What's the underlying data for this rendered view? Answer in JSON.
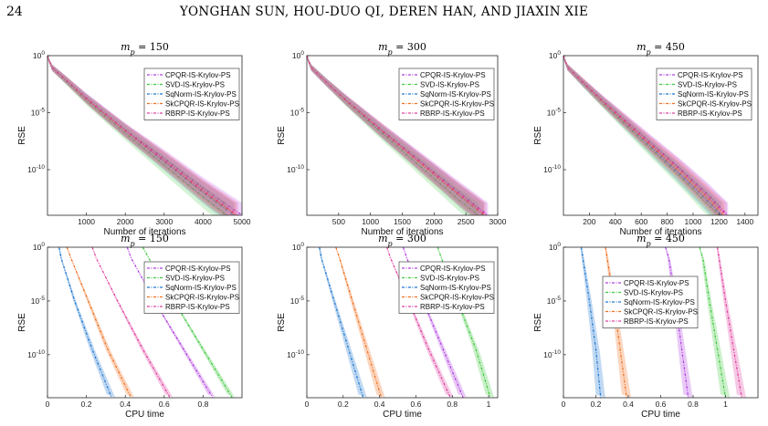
{
  "header": {
    "page_number": "24",
    "running_title": "YONGHAN SUN, HOU-DUO QI, DEREN HAN, AND JIAXIN XIE"
  },
  "chart_data": [
    {
      "type": "line",
      "title": "m_p = 150",
      "xlabel": "Number of iterations",
      "ylabel": "RSE",
      "yscale": "log",
      "xlim": [
        0,
        5000
      ],
      "ylim": [
        1e-14,
        1
      ],
      "xticks": [
        "1000",
        "2000",
        "3000",
        "4000",
        "5000"
      ],
      "yticks": [
        "10^0",
        "10^-5",
        "10^-10"
      ],
      "legend": "top-right",
      "series": [
        {
          "name": "CPQR-IS-Krylov-PS",
          "color": "#b040e0",
          "x": [
            0,
            100,
            500,
            1000,
            2000,
            3000,
            4000,
            5000
          ],
          "y_exp": [
            0,
            -1.0,
            -2.2,
            -3.7,
            -6.5,
            -9.0,
            -11.6,
            -14.0
          ]
        },
        {
          "name": "SVD-IS-Krylov-PS",
          "color": "#40c840",
          "x": [
            0,
            100,
            500,
            1000,
            2000,
            3000,
            4000,
            4600
          ],
          "y_exp": [
            0,
            -1.0,
            -2.3,
            -3.9,
            -6.8,
            -9.6,
            -12.4,
            -14.0
          ]
        },
        {
          "name": "SqNorm-IS-Krylov-PS",
          "color": "#1f78d0",
          "x": [
            0,
            100,
            500,
            1000,
            2000,
            3000,
            4000,
            4800
          ],
          "y_exp": [
            0,
            -1.0,
            -2.2,
            -3.8,
            -6.6,
            -9.3,
            -12.0,
            -14.0
          ]
        },
        {
          "name": "SkCPQR-IS-Krylov-PS",
          "color": "#f07020",
          "x": [
            0,
            100,
            500,
            1000,
            2000,
            3000,
            4000,
            4850
          ],
          "y_exp": [
            0,
            -1.0,
            -2.2,
            -3.8,
            -6.6,
            -9.2,
            -11.9,
            -14.0
          ]
        },
        {
          "name": "RBRP-IS-Krylov-PS",
          "color": "#e040a0",
          "x": [
            0,
            100,
            500,
            1000,
            2000,
            3000,
            4000,
            4900
          ],
          "y_exp": [
            0,
            -1.0,
            -2.2,
            -3.75,
            -6.55,
            -9.15,
            -11.8,
            -14.0
          ]
        }
      ]
    },
    {
      "type": "line",
      "title": "m_p = 300",
      "xlabel": "Number of iterations",
      "ylabel": "RSE",
      "yscale": "log",
      "xlim": [
        0,
        3000
      ],
      "ylim": [
        1e-14,
        1
      ],
      "xticks": [
        "500",
        "1000",
        "1500",
        "2000",
        "2500",
        "3000"
      ],
      "yticks": [
        "10^0",
        "10^-5",
        "10^-10"
      ],
      "legend": "top-right",
      "series": [
        {
          "name": "CPQR-IS-Krylov-PS",
          "color": "#b040e0",
          "x": [
            0,
            60,
            300,
            600,
            1200,
            1800,
            2400,
            2850
          ],
          "y_exp": [
            0,
            -1.0,
            -2.3,
            -3.8,
            -6.6,
            -9.3,
            -12.0,
            -14.0
          ]
        },
        {
          "name": "SVD-IS-Krylov-PS",
          "color": "#40c840",
          "x": [
            0,
            60,
            300,
            600,
            1200,
            1800,
            2400,
            2700
          ],
          "y_exp": [
            0,
            -1.0,
            -2.3,
            -3.9,
            -6.9,
            -9.8,
            -12.7,
            -14.0
          ]
        },
        {
          "name": "SqNorm-IS-Krylov-PS",
          "color": "#1f78d0",
          "x": [
            0,
            60,
            300,
            600,
            1200,
            1800,
            2400,
            2780
          ],
          "y_exp": [
            0,
            -1.0,
            -2.3,
            -3.85,
            -6.75,
            -9.5,
            -12.3,
            -14.0
          ]
        },
        {
          "name": "SkCPQR-IS-Krylov-PS",
          "color": "#f07020",
          "x": [
            0,
            60,
            300,
            600,
            1200,
            1800,
            2400,
            2790
          ],
          "y_exp": [
            0,
            -1.0,
            -2.3,
            -3.85,
            -6.7,
            -9.5,
            -12.25,
            -14.0
          ]
        },
        {
          "name": "RBRP-IS-Krylov-PS",
          "color": "#e040a0",
          "x": [
            0,
            60,
            300,
            600,
            1200,
            1800,
            2400,
            2820
          ],
          "y_exp": [
            0,
            -1.0,
            -2.3,
            -3.8,
            -6.65,
            -9.4,
            -12.15,
            -14.0
          ]
        }
      ]
    },
    {
      "type": "line",
      "title": "m_p = 450",
      "xlabel": "Number of iterations",
      "ylabel": "RSE",
      "yscale": "log",
      "xlim": [
        0,
        1500
      ],
      "ylim": [
        1e-14,
        1
      ],
      "xticks": [
        "200",
        "400",
        "600",
        "800",
        "1000",
        "1200",
        "1400"
      ],
      "yticks": [
        "10^0",
        "10^-5",
        "10^-10"
      ],
      "legend": "top-right",
      "series": [
        {
          "name": "CPQR-IS-Krylov-PS",
          "color": "#b040e0",
          "x": [
            0,
            30,
            150,
            300,
            600,
            900,
            1100,
            1270
          ],
          "y_exp": [
            0,
            -1.0,
            -2.3,
            -3.9,
            -6.9,
            -9.9,
            -12.0,
            -14.0
          ]
        },
        {
          "name": "SVD-IS-Krylov-PS",
          "color": "#40c840",
          "x": [
            0,
            30,
            150,
            300,
            600,
            900,
            1100,
            1200
          ],
          "y_exp": [
            0,
            -1.0,
            -2.4,
            -4.1,
            -7.4,
            -10.6,
            -12.9,
            -14.0
          ]
        },
        {
          "name": "SqNorm-IS-Krylov-PS",
          "color": "#1f78d0",
          "x": [
            0,
            30,
            150,
            300,
            600,
            900,
            1100,
            1220
          ],
          "y_exp": [
            0,
            -1.0,
            -2.4,
            -4.0,
            -7.2,
            -10.4,
            -12.6,
            -14.0
          ]
        },
        {
          "name": "SkCPQR-IS-Krylov-PS",
          "color": "#f07020",
          "x": [
            0,
            30,
            150,
            300,
            600,
            900,
            1100,
            1240
          ],
          "y_exp": [
            0,
            -1.0,
            -2.35,
            -4.0,
            -7.1,
            -10.2,
            -12.4,
            -14.0
          ]
        },
        {
          "name": "RBRP-IS-Krylov-PS",
          "color": "#e040a0",
          "x": [
            0,
            30,
            150,
            300,
            600,
            900,
            1100,
            1260
          ],
          "y_exp": [
            0,
            -1.0,
            -2.3,
            -3.95,
            -7.0,
            -10.0,
            -12.2,
            -14.0
          ]
        }
      ]
    },
    {
      "type": "line",
      "title": "m_p = 150",
      "xlabel": "CPU time",
      "ylabel": "RSE",
      "yscale": "log",
      "xlim": [
        0,
        1.0
      ],
      "ylim": [
        1e-14,
        1
      ],
      "xticks": [
        "0",
        "0.2",
        "0.4",
        "0.6",
        "0.8"
      ],
      "yticks": [
        "10^0",
        "10^-5",
        "10^-10"
      ],
      "legend": "top-right",
      "series": [
        {
          "name": "CPQR-IS-Krylov-PS",
          "color": "#b040e0",
          "x": [
            0.41,
            0.43,
            0.55,
            0.7,
            0.85
          ],
          "y_exp": [
            0,
            -1.0,
            -5.0,
            -9.5,
            -14.0
          ]
        },
        {
          "name": "SVD-IS-Krylov-PS",
          "color": "#40c840",
          "x": [
            0.49,
            0.52,
            0.65,
            0.8,
            0.95
          ],
          "y_exp": [
            0,
            -1.0,
            -5.0,
            -9.5,
            -14.0
          ]
        },
        {
          "name": "SqNorm-IS-Krylov-PS",
          "color": "#1f78d0",
          "x": [
            0.06,
            0.07,
            0.14,
            0.23,
            0.33
          ],
          "y_exp": [
            0,
            -1.0,
            -5.0,
            -9.5,
            -14.0
          ]
        },
        {
          "name": "SkCPQR-IS-Krylov-PS",
          "color": "#f07020",
          "x": [
            0.1,
            0.12,
            0.21,
            0.31,
            0.43
          ],
          "y_exp": [
            0,
            -1.0,
            -5.0,
            -9.5,
            -14.0
          ]
        },
        {
          "name": "RBRP-IS-Krylov-PS",
          "color": "#e040a0",
          "x": [
            0.23,
            0.25,
            0.36,
            0.49,
            0.63
          ],
          "y_exp": [
            0,
            -1.0,
            -5.0,
            -9.5,
            -14.0
          ]
        }
      ]
    },
    {
      "type": "line",
      "title": "m_p = 300",
      "xlabel": "CPU time",
      "ylabel": "RSE",
      "yscale": "log",
      "xlim": [
        0,
        1.05
      ],
      "ylim": [
        1e-14,
        1
      ],
      "xticks": [
        "0",
        "0.2",
        "0.4",
        "0.6",
        "0.8",
        "1"
      ],
      "yticks": [
        "10^0",
        "10^-5",
        "10^-10"
      ],
      "legend": "top-right",
      "series": [
        {
          "name": "CPQR-IS-Krylov-PS",
          "color": "#b040e0",
          "x": [
            0.53,
            0.55,
            0.64,
            0.75,
            0.86
          ],
          "y_exp": [
            0,
            -1.0,
            -5.0,
            -9.5,
            -14.0
          ]
        },
        {
          "name": "SVD-IS-Krylov-PS",
          "color": "#40c840",
          "x": [
            0.72,
            0.74,
            0.83,
            0.93,
            1.01
          ],
          "y_exp": [
            0,
            -1.0,
            -5.0,
            -9.5,
            -14.0
          ]
        },
        {
          "name": "SqNorm-IS-Krylov-PS",
          "color": "#1f78d0",
          "x": [
            0.07,
            0.08,
            0.15,
            0.23,
            0.31
          ],
          "y_exp": [
            0,
            -1.0,
            -5.0,
            -9.5,
            -14.0
          ]
        },
        {
          "name": "SkCPQR-IS-Krylov-PS",
          "color": "#f07020",
          "x": [
            0.16,
            0.18,
            0.25,
            0.33,
            0.41
          ],
          "y_exp": [
            0,
            -1.0,
            -5.0,
            -9.5,
            -14.0
          ]
        },
        {
          "name": "RBRP-IS-Krylov-PS",
          "color": "#e040a0",
          "x": [
            0.44,
            0.46,
            0.56,
            0.67,
            0.79
          ],
          "y_exp": [
            0,
            -1.0,
            -5.0,
            -9.5,
            -14.0
          ]
        }
      ]
    },
    {
      "type": "line",
      "title": "m_p = 450",
      "xlabel": "CPU time",
      "ylabel": "RSE",
      "yscale": "log",
      "xlim": [
        0,
        1.2
      ],
      "ylim": [
        1e-14,
        1
      ],
      "xticks": [
        "0",
        "0.2",
        "0.4",
        "0.6",
        "0.8",
        "1"
      ],
      "yticks": [
        "10^0",
        "10^-5",
        "10^-10"
      ],
      "legend": "center",
      "series": [
        {
          "name": "CPQR-IS-Krylov-PS",
          "color": "#b040e0",
          "x": [
            0.63,
            0.65,
            0.69,
            0.73,
            0.77
          ],
          "y_exp": [
            0,
            -1.0,
            -5.0,
            -9.5,
            -14.0
          ]
        },
        {
          "name": "SVD-IS-Krylov-PS",
          "color": "#40c840",
          "x": [
            0.84,
            0.86,
            0.9,
            0.95,
            1.0
          ],
          "y_exp": [
            0,
            -1.0,
            -5.0,
            -9.5,
            -14.0
          ]
        },
        {
          "name": "SqNorm-IS-Krylov-PS",
          "color": "#1f78d0",
          "x": [
            0.11,
            0.12,
            0.16,
            0.2,
            0.23
          ],
          "y_exp": [
            0,
            -1.0,
            -5.0,
            -9.5,
            -14.0
          ]
        },
        {
          "name": "SkCPQR-IS-Krylov-PS",
          "color": "#f07020",
          "x": [
            0.26,
            0.27,
            0.31,
            0.35,
            0.39
          ],
          "y_exp": [
            0,
            -1.0,
            -5.0,
            -9.5,
            -14.0
          ]
        },
        {
          "name": "RBRP-IS-Krylov-PS",
          "color": "#e040a0",
          "x": [
            0.95,
            0.96,
            1.0,
            1.05,
            1.1
          ],
          "y_exp": [
            0,
            -1.0,
            -5.0,
            -9.5,
            -14.0
          ]
        }
      ]
    }
  ]
}
